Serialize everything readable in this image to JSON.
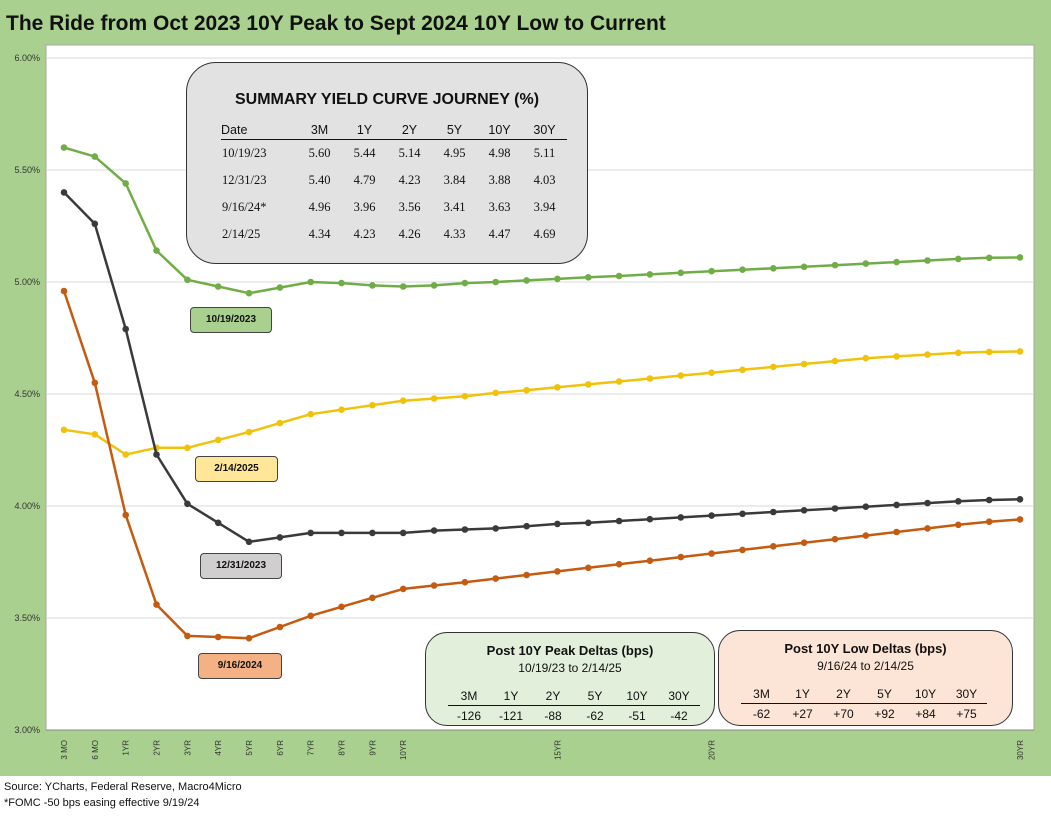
{
  "title": "The Ride from Oct 2023 10Y Peak to Sept 2024 10Y Low to Current",
  "footer": {
    "source": "Source: YCharts, Federal Reserve, Macro4Micro",
    "note": "*FOMC -50 bps easing effective  9/19/24"
  },
  "summary": {
    "title": "SUMMARY YIELD CURVE JOURNEY (%)",
    "headers": [
      "Date",
      "3M",
      "1Y",
      "2Y",
      "5Y",
      "10Y",
      "30Y"
    ],
    "rows": [
      [
        "10/19/23",
        "5.60",
        "5.44",
        "5.14",
        "4.95",
        "4.98",
        "5.11"
      ],
      [
        "12/31/23",
        "5.40",
        "4.79",
        "4.23",
        "3.84",
        "3.88",
        "4.03"
      ],
      [
        "9/16/24*",
        "4.96",
        "3.96",
        "3.56",
        "3.41",
        "3.63",
        "3.94"
      ],
      [
        "2/14/25",
        "4.34",
        "4.23",
        "4.26",
        "4.33",
        "4.47",
        "4.69"
      ]
    ]
  },
  "peak_deltas": {
    "title": "Post 10Y Peak Deltas (bps)",
    "subtitle": "10/19/23 to 2/14/25",
    "headers": [
      "3M",
      "1Y",
      "2Y",
      "5Y",
      "10Y",
      "30Y"
    ],
    "values": [
      "-126",
      "-121",
      "-88",
      "-62",
      "-51",
      "-42"
    ]
  },
  "low_deltas": {
    "title": "Post 10Y Low Deltas (bps)",
    "subtitle": "9/16/24 to 2/14/25",
    "headers": [
      "3M",
      "1Y",
      "2Y",
      "5Y",
      "10Y",
      "30Y"
    ],
    "values": [
      "-62",
      "+27",
      "+70",
      "+92",
      "+84",
      "+75"
    ]
  },
  "series_labels": {
    "oct2023": "10/19/2023",
    "feb2025": "2/14/2025",
    "dec2023": "12/31/2023",
    "sep2024": "9/16/2024"
  },
  "chart_data": {
    "type": "line",
    "title": "The Ride from Oct 2023 10Y Peak to Sept 2024 10Y Low to Current",
    "x_tick_labels": [
      "3 MO",
      "6 MO",
      "1YR",
      "2YR",
      "3YR",
      "4YR",
      "5YR",
      "6YR",
      "7YR",
      "8YR",
      "9YR",
      "10YR",
      "15YR",
      "20YR",
      "30YR"
    ],
    "x_tick_positions_years": [
      0,
      1,
      2,
      3,
      4,
      5,
      6,
      7,
      8,
      9,
      10,
      11,
      16,
      21,
      31
    ],
    "ylim": [
      3.0,
      6.0
    ],
    "yticks": [
      3.0,
      3.5,
      4.0,
      4.5,
      5.0,
      5.5,
      6.0
    ],
    "y_tick_labels": [
      "3.00%",
      "3.50%",
      "4.00%",
      "4.50%",
      "5.00%",
      "5.50%",
      "6.00%"
    ],
    "grid": true,
    "series": [
      {
        "name": "10/19/2023",
        "color": "#70ad47",
        "values": [
          5.6,
          5.56,
          5.44,
          5.14,
          5.01,
          4.98,
          4.95,
          4.975,
          5.0,
          4.995,
          4.985,
          4.98,
          4.985,
          4.995,
          5.0,
          5.007,
          5.014,
          5.021,
          5.027,
          5.034,
          5.041,
          5.048,
          5.055,
          5.061,
          5.068,
          5.075,
          5.082,
          5.089,
          5.096,
          5.103,
          5.108,
          5.11
        ]
      },
      {
        "name": "2/14/2025",
        "color": "#f0c20c",
        "values": [
          4.34,
          4.32,
          4.23,
          4.26,
          4.26,
          4.295,
          4.33,
          4.37,
          4.41,
          4.43,
          4.45,
          4.47,
          4.48,
          4.49,
          4.505,
          4.517,
          4.53,
          4.543,
          4.556,
          4.569,
          4.582,
          4.595,
          4.608,
          4.621,
          4.634,
          4.647,
          4.66,
          4.668,
          4.676,
          4.684,
          4.688,
          4.69
        ]
      },
      {
        "name": "12/31/2023",
        "color": "#3a3a3a",
        "values": [
          5.4,
          5.26,
          4.79,
          4.23,
          4.01,
          3.925,
          3.84,
          3.86,
          3.88,
          3.88,
          3.88,
          3.88,
          3.89,
          3.895,
          3.9,
          3.91,
          3.92,
          3.925,
          3.933,
          3.941,
          3.949,
          3.957,
          3.965,
          3.973,
          3.981,
          3.989,
          3.997,
          4.005,
          4.013,
          4.021,
          4.027,
          4.03
        ]
      },
      {
        "name": "9/16/2024",
        "color": "#c55a11",
        "values": [
          4.96,
          4.55,
          3.96,
          3.56,
          3.42,
          3.415,
          3.41,
          3.46,
          3.51,
          3.55,
          3.59,
          3.63,
          3.645,
          3.66,
          3.676,
          3.692,
          3.708,
          3.724,
          3.74,
          3.756,
          3.772,
          3.788,
          3.804,
          3.82,
          3.836,
          3.852,
          3.868,
          3.884,
          3.9,
          3.916,
          3.93,
          3.94
        ]
      }
    ]
  }
}
